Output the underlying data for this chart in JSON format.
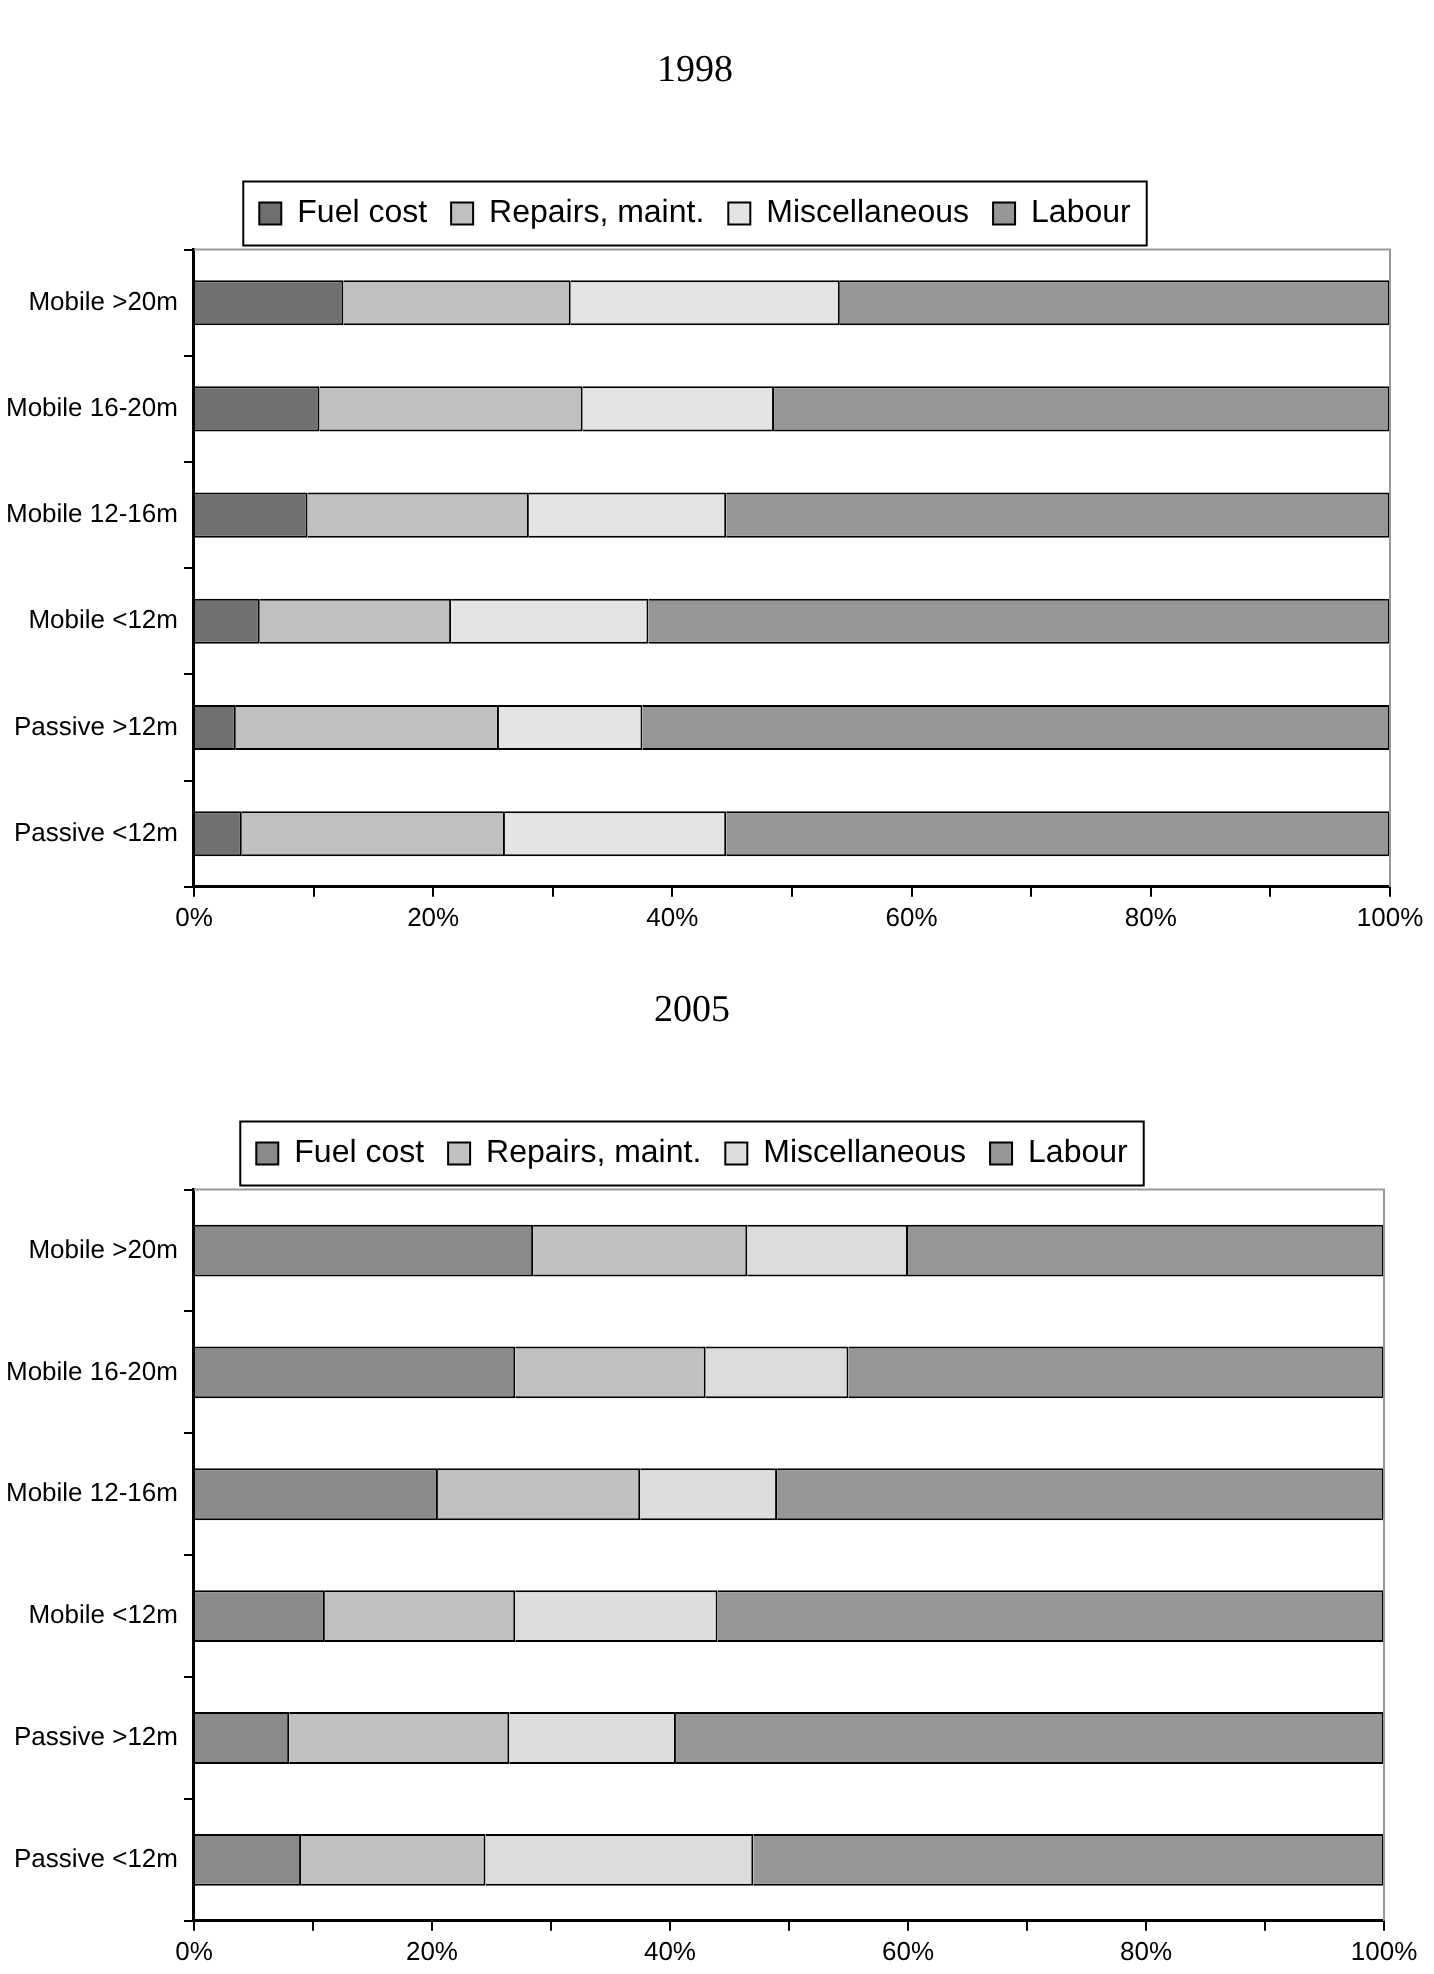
{
  "chart_data": [
    {
      "type": "bar",
      "title": "1998",
      "orientation": "horizontal",
      "stacked": true,
      "legend": "top",
      "grid": false,
      "categories": [
        "Mobile >20m",
        "Mobile 16-20m",
        "Mobile 12-16m",
        "Mobile <12m",
        "Passive >12m",
        "Passive <12m"
      ],
      "xlim": [
        0,
        100
      ],
      "xticks": [
        {
          "value": 0,
          "label": "0%"
        },
        {
          "value": 20,
          "label": "20%"
        },
        {
          "value": 40,
          "label": "40%"
        },
        {
          "value": 60,
          "label": "60%"
        },
        {
          "value": 80,
          "label": "80%"
        },
        {
          "value": 100,
          "label": "100%"
        }
      ],
      "series": [
        {
          "name": "Fuel cost",
          "color": "#707070",
          "values": [
            12.5,
            10.5,
            9.5,
            5.5,
            3.5,
            4
          ]
        },
        {
          "name": "Repairs, maint.",
          "color": "#c0c0c0",
          "values": [
            19,
            22,
            18.5,
            16,
            22,
            22
          ]
        },
        {
          "name": "Miscellaneous",
          "color": "#e4e4e4",
          "values": [
            22.5,
            16,
            16.5,
            16.5,
            12,
            18.5
          ]
        },
        {
          "name": "Labour",
          "color": "#969696",
          "values": [
            46,
            51.5,
            55.5,
            62,
            62.5,
            55.5
          ]
        }
      ]
    },
    {
      "type": "bar",
      "title": "2005",
      "orientation": "horizontal",
      "stacked": true,
      "legend": "top",
      "grid": false,
      "categories": [
        "Mobile >20m",
        "Mobile 16-20m",
        "Mobile 12-16m",
        "Mobile <12m",
        "Passive >12m",
        "Passive <12m"
      ],
      "xlim": [
        0,
        100
      ],
      "xticks": [
        {
          "value": 0,
          "label": "0%"
        },
        {
          "value": 20,
          "label": "20%"
        },
        {
          "value": 40,
          "label": "40%"
        },
        {
          "value": 60,
          "label": "60%"
        },
        {
          "value": 80,
          "label": "80%"
        },
        {
          "value": 100,
          "label": "100%"
        }
      ],
      "series": [
        {
          "name": "Fuel cost",
          "color": "#8a8a8a",
          "values": [
            28.5,
            27,
            20.5,
            11,
            8,
            9
          ]
        },
        {
          "name": "Repairs, maint.",
          "color": "#c0c0c0",
          "values": [
            18,
            16,
            17,
            16,
            18.5,
            15.5
          ]
        },
        {
          "name": "Miscellaneous",
          "color": "#dcdcdc",
          "values": [
            13.5,
            12,
            11.5,
            17,
            14,
            22.5
          ]
        },
        {
          "name": "Labour",
          "color": "#969696",
          "values": [
            40,
            45,
            51,
            56,
            59.5,
            53
          ]
        }
      ]
    }
  ]
}
